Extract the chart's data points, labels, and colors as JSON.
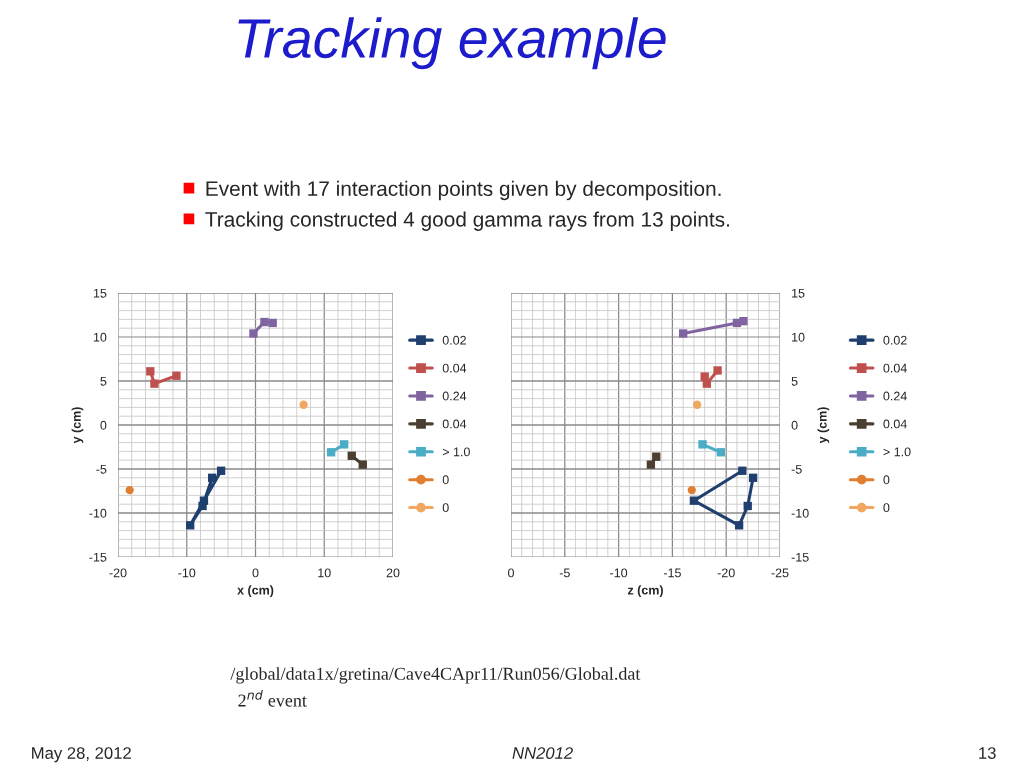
{
  "chart_data": [
    {
      "type": "line",
      "title": "Tracking example",
      "xlabel": "x (cm)",
      "ylabel": "y (cm)",
      "xlim": [
        -20,
        20
      ],
      "xticks": [
        -20,
        -10,
        0,
        10,
        20
      ],
      "ylim": [
        -15,
        15
      ],
      "yticks": [
        -15,
        -10,
        -5,
        0,
        5,
        10,
        15
      ],
      "grid": true,
      "legend": "right",
      "marker": "square",
      "annotations": [
        "Event with 17 interaction points given by decomposition.",
        "Tracking constructed 4 good gamma rays from 13 points.",
        "/global/data1x/gretina/Cave4CApr11/Run056/Global.dat",
        "2$^{nd}$ event",
        "May 28, 2012",
        "NN2012",
        "13"
      ],
      "series": [
        {
          "name": "0.02",
          "color": "#1f3f6e",
          "x": [
            -6.3,
            -7.7,
            -9.5,
            -7.5,
            -5.0
          ],
          "values": [
            -6.0,
            -9.2,
            -11.4,
            -8.6,
            -5.2
          ]
        },
        {
          "name": "0.04",
          "color": "#c0504d",
          "x": [
            -15.3,
            -14.7,
            -11.5
          ],
          "values": [
            6.1,
            4.7,
            5.6
          ]
        },
        {
          "name": "0.24",
          "color": "#8064a2",
          "x": [
            -0.3,
            1.3,
            2.5
          ],
          "values": [
            10.4,
            11.7,
            11.6
          ]
        },
        {
          "name": "0.04",
          "color": "#4a3f30",
          "x": [
            14.0,
            15.6
          ],
          "values": [
            -3.5,
            -4.5
          ]
        },
        {
          "name": "> 1.0",
          "color": "#4bacc6",
          "x": [
            11.0,
            12.9
          ],
          "values": [
            -3.1,
            -2.2
          ]
        },
        {
          "name": "0",
          "color": "#e07f30",
          "marker": "circle",
          "x": [
            -18.3
          ],
          "values": [
            -7.4
          ]
        },
        {
          "name": "0",
          "color": "#f2a760",
          "marker": "circle",
          "x": [
            7.0
          ],
          "values": [
            2.3
          ]
        }
      ]
    },
    {
      "type": "line",
      "xlabel": "z (cm)",
      "ylabel": "y (cm)",
      "xlim": [
        0,
        -25
      ],
      "xticks": [
        0,
        -5,
        -10,
        -15,
        -20,
        -25
      ],
      "ylim": [
        -15,
        15
      ],
      "yticks": [
        -15,
        -10,
        -5,
        0,
        5,
        10,
        15
      ],
      "grid": true,
      "legend": "right",
      "marker": "square",
      "series": [
        {
          "name": "0.02",
          "color": "#1f3f6e",
          "x": [
            -22.5,
            -22.0,
            -21.2,
            -17.0,
            -21.5
          ],
          "values": [
            -6.0,
            -9.2,
            -11.4,
            -8.6,
            -5.2
          ]
        },
        {
          "name": "0.04",
          "color": "#c0504d",
          "x": [
            -18.0,
            -18.2,
            -19.2
          ],
          "values": [
            5.5,
            4.7,
            6.2
          ]
        },
        {
          "name": "0.24",
          "color": "#8064a2",
          "x": [
            -16.0,
            -21.0,
            -21.6
          ],
          "values": [
            10.4,
            11.6,
            11.8
          ]
        },
        {
          "name": "0.04",
          "color": "#4a3f30",
          "x": [
            -13.5,
            -13.0
          ],
          "values": [
            -3.6,
            -4.5
          ]
        },
        {
          "name": "> 1.0",
          "color": "#4bacc6",
          "x": [
            -17.8,
            -19.5
          ],
          "values": [
            -2.2,
            -3.1
          ]
        },
        {
          "name": "0",
          "color": "#e07f30",
          "marker": "circle",
          "x": [
            -16.8
          ],
          "values": [
            -7.4
          ]
        },
        {
          "name": "0",
          "color": "#f2a760",
          "marker": "circle",
          "x": [
            -17.3
          ],
          "values": [
            2.3
          ]
        }
      ]
    }
  ]
}
